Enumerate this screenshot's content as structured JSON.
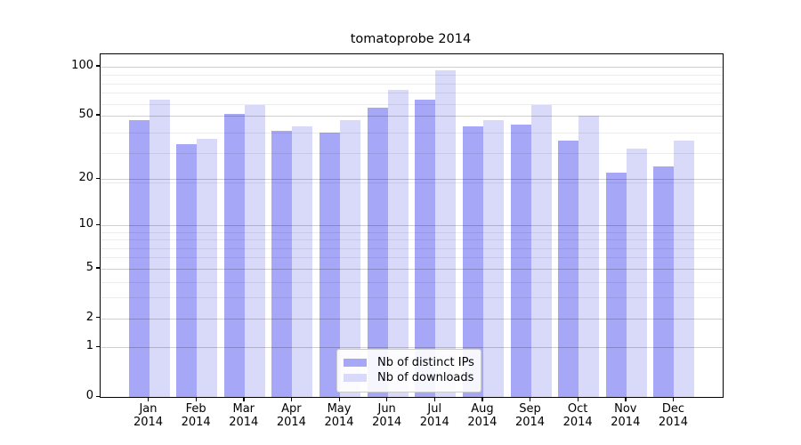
{
  "chart_data": {
    "type": "bar",
    "title": "tomatoprobe 2014",
    "categories": [
      "Jan",
      "Feb",
      "Mar",
      "Apr",
      "May",
      "Jun",
      "Jul",
      "Aug",
      "Sep",
      "Oct",
      "Nov",
      "Dec"
    ],
    "category_year": "2014",
    "series": [
      {
        "name": "Nb of distinct IPs",
        "color": "#a7a7f7",
        "values": [
          47,
          33,
          51,
          40,
          39,
          56,
          63,
          43,
          44,
          35,
          22,
          24
        ]
      },
      {
        "name": "Nb of downloads",
        "color": "#d9d9fa",
        "values": [
          63,
          36,
          58,
          43,
          47,
          72,
          95,
          47,
          58,
          50,
          31,
          35
        ]
      }
    ],
    "yaxis": {
      "scale": "log10(value+1)",
      "tick_values": [
        100,
        50,
        20,
        10,
        5,
        2,
        1,
        0
      ],
      "tick_labels": [
        "100",
        "50",
        "20",
        "10",
        "5",
        "2",
        "1",
        "0"
      ],
      "minor_grid_values_plus1": [
        4,
        5,
        7,
        8,
        9,
        10,
        20,
        30,
        40,
        60,
        70,
        80,
        90
      ],
      "range": [
        0,
        119
      ]
    },
    "xlabel": "",
    "ylabel": "",
    "grid": true,
    "grid_major_color": "#cfcfcf",
    "grid_minor_color": "#ededed",
    "spine_color": "#000000",
    "legend_position": "lower-center",
    "legend_entries": [
      "Nb of distinct IPs",
      "Nb of downloads"
    ]
  }
}
